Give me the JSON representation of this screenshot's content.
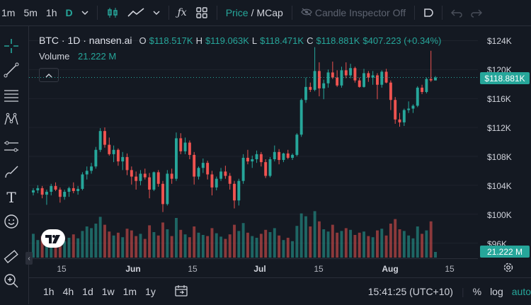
{
  "toolbar": {
    "intervals": [
      "1m",
      "5m",
      "1h",
      "D"
    ],
    "active_interval": "D",
    "price_label": "Price",
    "slash": "/",
    "mcap_label": "MCap",
    "candle_inspector": "Candle Inspector Off"
  },
  "legend": {
    "symbol": "BTC · 1D · nansen.ai",
    "o_label": "O",
    "o_value": "$118.517K",
    "h_label": "H",
    "h_value": "$119.063K",
    "l_label": "L",
    "l_value": "$118.471K",
    "c_label": "C",
    "c_value": "$118.881K",
    "change": "$407.223 (+0.34%)",
    "volume_label": "Volume",
    "volume_value": "21.222 M"
  },
  "price_scale": {
    "labels": [
      "$124K",
      "$120K",
      "$116K",
      "$112K",
      "$108K",
      "$104K",
      "$100K",
      "$96K"
    ],
    "current_price": "$118.881K",
    "current_volume": "21.222 M"
  },
  "time_scale": {
    "labels": [
      "15",
      "Jun",
      "15",
      "Jul",
      "15",
      "Aug",
      "15"
    ]
  },
  "bottom": {
    "ranges": [
      "1h",
      "4h",
      "1d",
      "1w",
      "1m",
      "1y"
    ],
    "clock": "15:41:25 (UTC+10)",
    "percent": "%",
    "log": "log",
    "auto": "auto"
  },
  "colors": {
    "up": "#26a69a",
    "down": "#ef5350",
    "background": "#141922"
  },
  "chart_data": {
    "type": "candlestick",
    "y_unit": "USD (thousands)",
    "ylim": [
      94,
      126
    ],
    "x_range": [
      "2025-05-07",
      "2025-08-11"
    ],
    "candles": [
      [
        103.0,
        103.6,
        102.6,
        103.3
      ],
      [
        103.3,
        104.0,
        102.9,
        103.6
      ],
      [
        103.6,
        103.9,
        102.2,
        102.7
      ],
      [
        102.7,
        103.4,
        101.3,
        103.1
      ],
      [
        103.1,
        104.2,
        102.6,
        103.9
      ],
      [
        103.9,
        104.4,
        103.2,
        103.4
      ],
      [
        103.4,
        103.7,
        101.6,
        102.4
      ],
      [
        102.4,
        103.4,
        102.0,
        103.1
      ],
      [
        103.1,
        103.8,
        102.4,
        103.6
      ],
      [
        103.6,
        104.4,
        102.9,
        103.2
      ],
      [
        103.2,
        103.9,
        102.7,
        103.5
      ],
      [
        103.5,
        105.8,
        103.3,
        105.5
      ],
      [
        105.5,
        106.6,
        104.8,
        106.0
      ],
      [
        106.0,
        107.1,
        105.6,
        106.6
      ],
      [
        106.6,
        109.3,
        106.3,
        108.9
      ],
      [
        108.9,
        111.9,
        108.6,
        111.5
      ],
      [
        111.5,
        112.0,
        109.2,
        109.6
      ],
      [
        109.6,
        110.6,
        108.1,
        108.3
      ],
      [
        108.3,
        109.5,
        107.2,
        108.9
      ],
      [
        108.9,
        109.1,
        106.7,
        107.3
      ],
      [
        107.3,
        108.6,
        106.1,
        107.9
      ],
      [
        107.9,
        108.4,
        105.4,
        106.1
      ],
      [
        106.1,
        106.6,
        104.1,
        105.2
      ],
      [
        105.2,
        105.9,
        103.4,
        104.6
      ],
      [
        104.6,
        106.1,
        104.0,
        105.6
      ],
      [
        105.6,
        106.3,
        104.8,
        105.1
      ],
      [
        105.1,
        105.7,
        102.2,
        103.4
      ],
      [
        103.4,
        105.9,
        103.2,
        105.8
      ],
      [
        105.8,
        106.1,
        103.8,
        104.2
      ],
      [
        104.2,
        104.6,
        100.3,
        101.4
      ],
      [
        101.4,
        106.1,
        101.2,
        105.6
      ],
      [
        105.6,
        106.3,
        104.2,
        104.9
      ],
      [
        104.9,
        111.3,
        104.6,
        110.5
      ],
      [
        110.5,
        111.2,
        108.3,
        108.7
      ],
      [
        108.7,
        110.6,
        108.3,
        109.9
      ],
      [
        109.9,
        110.2,
        107.6,
        108.2
      ],
      [
        108.2,
        108.6,
        104.1,
        105.2
      ],
      [
        105.2,
        106.6,
        104.8,
        106.4
      ],
      [
        106.4,
        107.7,
        105.7,
        107.1
      ],
      [
        107.1,
        107.4,
        104.8,
        105.5
      ],
      [
        105.5,
        106.0,
        102.6,
        103.7
      ],
      [
        103.7,
        105.2,
        103.3,
        104.9
      ],
      [
        104.9,
        106.4,
        104.6,
        105.9
      ],
      [
        105.9,
        106.7,
        104.9,
        105.3
      ],
      [
        105.3,
        105.7,
        103.4,
        104.2
      ],
      [
        104.2,
        104.6,
        100.8,
        101.9
      ],
      [
        101.9,
        104.9,
        101.2,
        104.6
      ],
      [
        104.6,
        108.3,
        104.2,
        107.8
      ],
      [
        107.8,
        108.9,
        106.9,
        107.3
      ],
      [
        107.3,
        108.1,
        106.4,
        107.6
      ],
      [
        107.6,
        108.8,
        107.1,
        108.3
      ],
      [
        108.3,
        108.6,
        106.6,
        107.2
      ],
      [
        107.2,
        107.6,
        105.0,
        105.3
      ],
      [
        105.3,
        107.9,
        105.1,
        107.6
      ],
      [
        107.6,
        109.5,
        107.3,
        108.6
      ],
      [
        108.6,
        109.0,
        106.9,
        107.5
      ],
      [
        107.5,
        108.5,
        107.2,
        108.4
      ],
      [
        108.4,
        108.9,
        107.6,
        107.8
      ],
      [
        107.8,
        108.4,
        107.5,
        108.2
      ],
      [
        108.2,
        111.2,
        108.0,
        111.0
      ],
      [
        111.0,
        116.0,
        110.7,
        115.8
      ],
      [
        115.8,
        118.9,
        115.4,
        117.6
      ],
      [
        117.6,
        118.2,
        116.9,
        117.2
      ],
      [
        117.2,
        123.1,
        117.0,
        119.8
      ],
      [
        119.8,
        121.0,
        116.3,
        117.4
      ],
      [
        117.4,
        118.6,
        115.9,
        118.1
      ],
      [
        118.1,
        120.0,
        117.5,
        119.6
      ],
      [
        119.6,
        121.1,
        118.7,
        118.9
      ],
      [
        118.9,
        119.9,
        117.6,
        117.8
      ],
      [
        117.8,
        120.4,
        117.5,
        119.9
      ],
      [
        119.9,
        121.0,
        118.8,
        119.2
      ],
      [
        119.2,
        120.8,
        118.8,
        120.2
      ],
      [
        120.2,
        120.4,
        118.2,
        118.5
      ],
      [
        118.5,
        118.9,
        117.5,
        117.6
      ],
      [
        117.6,
        120.1,
        117.5,
        119.5
      ],
      [
        119.5,
        119.8,
        118.3,
        118.9
      ],
      [
        118.9,
        119.8,
        117.9,
        119.2
      ],
      [
        119.2,
        119.5,
        115.9,
        117.9
      ],
      [
        117.9,
        119.9,
        117.5,
        119.7
      ],
      [
        119.7,
        120.1,
        118.1,
        118.2
      ],
      [
        118.2,
        118.5,
        114.4,
        115.8
      ],
      [
        115.8,
        116.2,
        112.5,
        113.1
      ],
      [
        113.1,
        114.0,
        112.1,
        112.7
      ],
      [
        112.7,
        114.6,
        112.2,
        114.4
      ],
      [
        114.4,
        115.6,
        114.0,
        114.6
      ],
      [
        114.6,
        115.2,
        114.0,
        115.0
      ],
      [
        115.0,
        117.7,
        114.8,
        117.5
      ],
      [
        117.5,
        117.9,
        116.6,
        116.9
      ],
      [
        116.9,
        118.9,
        116.7,
        118.7
      ],
      [
        118.7,
        122.6,
        118.3,
        118.5
      ],
      [
        118.5,
        119.1,
        118.5,
        118.9
      ]
    ],
    "volume_scale_max": 100,
    "volumes": [
      42,
      31,
      38,
      36,
      40,
      33,
      37,
      29,
      35,
      41,
      34,
      47,
      55,
      52,
      60,
      72,
      58,
      46,
      39,
      44,
      36,
      51,
      48,
      38,
      42,
      33,
      57,
      45,
      39,
      62,
      50,
      38,
      70,
      49,
      41,
      36,
      55,
      44,
      40,
      38,
      52,
      43,
      37,
      33,
      41,
      58,
      47,
      61,
      44,
      38,
      35,
      42,
      49,
      45,
      52,
      39,
      31,
      35,
      29,
      56,
      78,
      73,
      55,
      82,
      64,
      50,
      46,
      58,
      44,
      47,
      52,
      49,
      40,
      44,
      46,
      38,
      36,
      48,
      51,
      39,
      60,
      68,
      50,
      47,
      39,
      34,
      55,
      42,
      48,
      64,
      10
    ]
  }
}
